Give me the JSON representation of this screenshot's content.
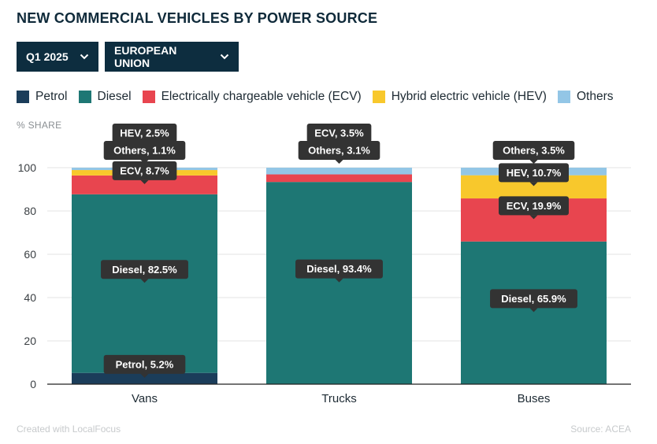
{
  "title": "NEW COMMERCIAL VEHICLES BY POWER SOURCE",
  "filters": {
    "period": "Q1 2025",
    "region": "EUROPEAN UNION",
    "chevron_icon": "chevron-down-icon"
  },
  "legend": [
    {
      "label": "Petrol",
      "color": "#1b3d5a"
    },
    {
      "label": "Diesel",
      "color": "#1e7774"
    },
    {
      "label": "Electrically chargeable vehicle (ECV)",
      "color": "#e8454f"
    },
    {
      "label": "Hybrid electric vehicle (HEV)",
      "color": "#f8c82c"
    },
    {
      "label": "Others",
      "color": "#93c6e6"
    }
  ],
  "y_axis_label": "% SHARE",
  "chart_data": {
    "type": "bar",
    "stacked": true,
    "categories": [
      "Vans",
      "Trucks",
      "Buses"
    ],
    "ylim": [
      0,
      100
    ],
    "yticks": [
      0,
      20,
      40,
      60,
      80,
      100
    ],
    "grid": true,
    "legend_position": "top",
    "series": [
      {
        "name": "Petrol",
        "color": "#1b3d5a",
        "values": [
          5.2,
          0,
          0
        ],
        "labels": [
          "Petrol, 5.2%",
          null,
          null
        ]
      },
      {
        "name": "Diesel",
        "color": "#1e7774",
        "values": [
          82.5,
          93.4,
          65.9
        ],
        "labels": [
          "Diesel, 82.5%",
          "Diesel, 93.4%",
          "Diesel, 65.9%"
        ]
      },
      {
        "name": "Electrically chargeable vehicle (ECV)",
        "color": "#e8454f",
        "values": [
          8.7,
          3.5,
          19.9
        ],
        "labels": [
          "ECV, 8.7%",
          "ECV, 3.5%",
          "ECV, 19.9%"
        ]
      },
      {
        "name": "Hybrid electric vehicle (HEV)",
        "color": "#f8c82c",
        "values": [
          2.5,
          0,
          10.7
        ],
        "labels": [
          "HEV, 2.5%",
          null,
          "HEV, 10.7%"
        ]
      },
      {
        "name": "Others",
        "color": "#93c6e6",
        "values": [
          1.1,
          3.1,
          3.5
        ],
        "labels": [
          "Others, 1.1%",
          "Others, 3.1%",
          "Others, 3.5%"
        ]
      }
    ]
  },
  "footer": {
    "credit": "Created with LocalFocus",
    "source": "Source:  ACEA"
  }
}
